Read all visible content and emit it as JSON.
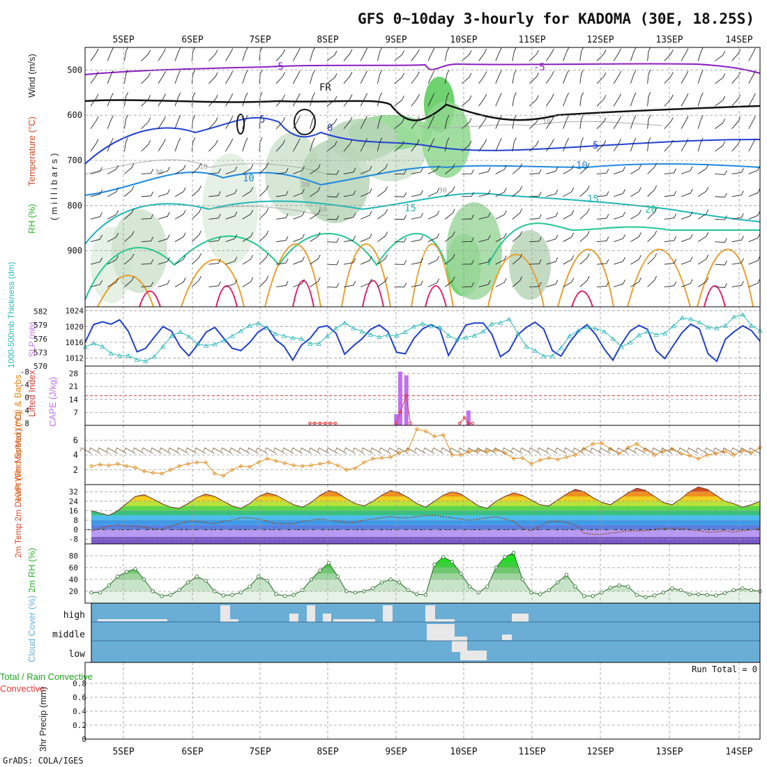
{
  "title": "GFS 0~10day 3-hourly for KADOMA (30E, 18.25S)",
  "credit": "GrADS: COLA/IGES",
  "run_total": "Run Total = 0",
  "colors": {
    "temp_label": "#d04a2a",
    "wind_label": "#202020",
    "rh": "#2fb52f",
    "slp": "#1f3fc8",
    "thickness": "#2cb8b8",
    "lifted": "#e03c3c",
    "cape": "#c070f0",
    "wind10": "#e08a1a",
    "barb10": "#7a5a3a",
    "cloud": "#6aaed6",
    "precip_total": "#20a020"
  },
  "chart_data": [
    {
      "type": "contour",
      "panel": "upper-air cross-section",
      "ylabel_parts": [
        "RH (%)",
        "Temperature (°C)",
        "Wind (m/s)",
        "(millibars)"
      ],
      "x_ticks": [
        "5SEP",
        "6SEP",
        "7SEP",
        "8SEP",
        "9SEP",
        "10SEP",
        "11SEP",
        "12SEP",
        "13SEP",
        "14SEP"
      ],
      "y_ticks": [
        500,
        600,
        700,
        800,
        900
      ],
      "y_range_mb": [
        1024,
        450
      ],
      "contour_labels": [
        "-5",
        "-5",
        "FR",
        "5",
        "0",
        "5",
        "10",
        "10",
        "15",
        "15",
        "20",
        "10",
        "30",
        "30",
        "30",
        "50",
        "10"
      ]
    },
    {
      "type": "line",
      "panel": "thickness & SLP",
      "ylabel_left": "1000-500mb Thickness (dm)",
      "ylabel_right": "SLP (mb)",
      "left_ticks": [
        570,
        573,
        576,
        579,
        582
      ],
      "right_ticks": [
        1012,
        1016,
        1020,
        1024
      ],
      "series": [
        {
          "name": "SLP (mb)",
          "values": [
            1016,
            1020.5,
            1021.2,
            1020.6,
            1021.7,
            1018.8,
            1013.6,
            1014.5,
            1017.3,
            1020,
            1018.8,
            1014.9,
            1012.6,
            1015.4,
            1018.6,
            1019.8,
            1017.1,
            1014.5,
            1013.9,
            1015.9,
            1018.6,
            1020,
            1016.7,
            1015,
            1011.5,
            1015.3,
            1017,
            1019.8,
            1020.2,
            1018.3,
            1013,
            1015.1,
            1016.9,
            1019.3,
            1020.4,
            1018.7,
            1013.5,
            1013.1,
            1017,
            1019.4,
            1020.5,
            1019.3,
            1012.7,
            1016.5,
            1020.4,
            1020.9,
            1020.9,
            1018.1,
            1012.4,
            1013.9,
            1017.9,
            1019.8,
            1021.1,
            1019.4,
            1013.9,
            1012.5,
            1016,
            1018.8,
            1020.5,
            1018,
            1014.3,
            1011.5,
            1015.6,
            1018.9,
            1020.3,
            1019.3,
            1013.9,
            1011.9,
            1015.3,
            1018.5,
            1020.6,
            1019.4,
            1013.1,
            1011.2,
            1016.8,
            1018.7,
            1020.2,
            1019,
            1016.3
          ]
        },
        {
          "name": "Thickness (dm)",
          "values": [
            574.2,
            575,
            574.3,
            572.8,
            572.3,
            572.3,
            571.4,
            571.1,
            572.1,
            574.3,
            576.6,
            577.5,
            576.5,
            574.9,
            574.5,
            574.8,
            575.6,
            576.6,
            577.7,
            578.9,
            579.4,
            578.4,
            577.1,
            576.6,
            576.2,
            576,
            574.9,
            574.9,
            576.6,
            578.3,
            579.5,
            578.3,
            577.6,
            576.9,
            576.4,
            576.8,
            576.7,
            577.5,
            578.7,
            579.3,
            578.8,
            578.5,
            576.7,
            575.8,
            576.3,
            576.7,
            577.6,
            579.3,
            579.5,
            580.3,
            577.2,
            574.3,
            573.4,
            572.2,
            572.2,
            574,
            576.6,
            577.8,
            578.6,
            578.2,
            577.6,
            576,
            574.2,
            575.2,
            576.8,
            577.6,
            576.9,
            577.2,
            578.8,
            580.6,
            580.3,
            579.6,
            578.5,
            578.3,
            578.9,
            580.8,
            581.3,
            578.9,
            577.8
          ]
        }
      ]
    },
    {
      "type": "bar",
      "panel": "Lifted Index & CAPE",
      "ylabel_left": "Lifted Index",
      "ylabel_right": "CAPE (J/kg)",
      "left_ticks": [
        "-8",
        "-4",
        "0",
        "4",
        "8"
      ],
      "right_ticks": [
        "28",
        "21",
        "14",
        "7"
      ],
      "cape_bars": [
        {
          "x": 46.7,
          "value": 29
        },
        {
          "x": 47.6,
          "value": 27
        },
        {
          "x": 46.1,
          "value": 6
        },
        {
          "x": 56.8,
          "value": 8
        }
      ],
      "lifted_index_points": [
        {
          "x": 33.3,
          "value": 5
        },
        {
          "x": 34.0,
          "value": 5
        },
        {
          "x": 34.8,
          "value": 5
        },
        {
          "x": 35.6,
          "value": 5
        },
        {
          "x": 36.3,
          "value": 5
        },
        {
          "x": 37.1,
          "value": 5
        },
        {
          "x": 46.1,
          "value": 5
        },
        {
          "x": 46.7,
          "value": 3
        },
        {
          "x": 47.6,
          "value": 0
        },
        {
          "x": 48.2,
          "value": 5
        },
        {
          "x": 55.5,
          "value": 5
        },
        {
          "x": 56.2,
          "value": 4
        },
        {
          "x": 56.8,
          "value": 5
        },
        {
          "x": 57.4,
          "value": 5
        }
      ]
    },
    {
      "type": "line",
      "panel": "10m wind",
      "ylabel": "10m Wind Speed (m/s) & Barbs",
      "y_ticks": [
        2,
        4,
        6
      ],
      "series": [
        {
          "name": "Speed",
          "values": [
            2.5,
            2.7,
            2.6,
            2.8,
            2.5,
            2.3,
            1.8,
            1.6,
            1.5,
            2,
            2.5,
            2.8,
            3,
            3,
            1.5,
            1.2,
            2,
            2.5,
            2.4,
            3,
            3.5,
            3.2,
            2.9,
            2.6,
            2.5,
            2.6,
            2.8,
            3,
            2.6,
            2,
            2.2,
            3,
            3.5,
            3.6,
            3.7,
            4.3,
            4.7,
            7.5,
            7.2,
            6.5,
            6.7,
            4,
            4,
            4.5,
            4.6,
            4.5,
            4.7,
            4.3,
            3.5,
            3.6,
            2.8,
            3.3,
            3.6,
            3.4,
            3.7,
            4,
            4.8,
            5.5,
            5.6,
            4.8,
            4.2,
            5,
            5.5,
            4.7,
            4,
            4.5,
            4.8,
            4.2,
            3.9,
            3.5,
            4,
            4.2,
            4.5,
            4,
            4.6,
            4.3,
            5
          ]
        }
      ]
    },
    {
      "type": "area",
      "panel": "2m temperature",
      "ylabel": "2m Temp 2m DewPt (6hr Min/Max) (°C)",
      "y_ticks": [
        -8,
        0,
        8,
        16,
        24,
        32
      ],
      "series": [
        {
          "name": "2m Temp",
          "values": [
            16,
            14,
            12,
            16,
            22,
            28,
            29.5,
            26,
            22,
            19,
            18,
            22,
            27,
            30,
            28,
            24,
            20,
            18,
            22,
            28,
            31,
            29,
            25,
            21,
            19,
            23,
            29,
            33,
            31,
            26,
            22,
            20,
            24,
            29,
            33,
            31,
            27,
            22,
            19,
            24,
            29,
            32,
            30,
            25,
            20,
            18,
            24,
            28,
            31,
            29,
            25,
            21,
            20,
            25,
            30,
            34,
            32,
            27,
            23,
            21,
            26,
            31,
            35,
            33,
            28,
            23,
            21,
            26,
            32,
            36,
            34,
            29,
            24,
            22,
            19,
            21,
            24
          ]
        },
        {
          "name": "2m DewPt",
          "values": [
            -1,
            1,
            3,
            4,
            3,
            3,
            2,
            1,
            0,
            3,
            5,
            7,
            7,
            6,
            5,
            7,
            8,
            10,
            10,
            9,
            7,
            5,
            5,
            5,
            7,
            8,
            9,
            8,
            7,
            6,
            6,
            8,
            9,
            10,
            11,
            10,
            10,
            11,
            12,
            12,
            11,
            10,
            9,
            8,
            9,
            10,
            11,
            9,
            7,
            1,
            -1,
            3,
            7,
            7,
            6,
            4,
            -3,
            -4,
            -4,
            -3,
            -2,
            -1,
            -1,
            -1,
            0,
            1,
            1,
            1,
            0,
            -1,
            -2,
            -2,
            -1,
            -2,
            -1,
            0,
            1
          ]
        }
      ]
    },
    {
      "type": "area",
      "panel": "2m RH",
      "ylabel": "2m RH (%)",
      "y_ticks": [
        20,
        40,
        60,
        80
      ],
      "series": [
        {
          "name": "2m RH",
          "values": [
            18,
            18,
            30,
            45,
            53,
            58,
            40,
            20,
            12,
            14,
            22,
            35,
            45,
            38,
            20,
            13,
            14,
            18,
            28,
            45,
            38,
            15,
            12,
            14,
            22,
            40,
            55,
            68,
            45,
            20,
            18,
            20,
            25,
            35,
            40,
            35,
            22,
            15,
            14,
            65,
            78,
            70,
            50,
            28,
            18,
            28,
            60,
            78,
            85,
            40,
            18,
            15,
            22,
            35,
            48,
            28,
            12,
            12,
            18,
            26,
            30,
            28,
            14,
            10,
            13,
            18,
            25,
            22,
            15,
            15,
            14,
            13,
            17,
            22,
            25,
            22,
            20
          ]
        }
      ]
    },
    {
      "type": "bar",
      "panel": "cloud cover",
      "ylabel": "Cloud Cover (%)",
      "levels": [
        "high",
        "middle",
        "low"
      ]
    },
    {
      "type": "bar",
      "panel": "precipitation",
      "ylabel_left": "Total / Rain Convective",
      "ylabel": "3hr Precip (mm)",
      "y_ticks": [
        "0",
        "0.2",
        "0.4",
        "0.6",
        "0.8"
      ],
      "values": []
    }
  ]
}
